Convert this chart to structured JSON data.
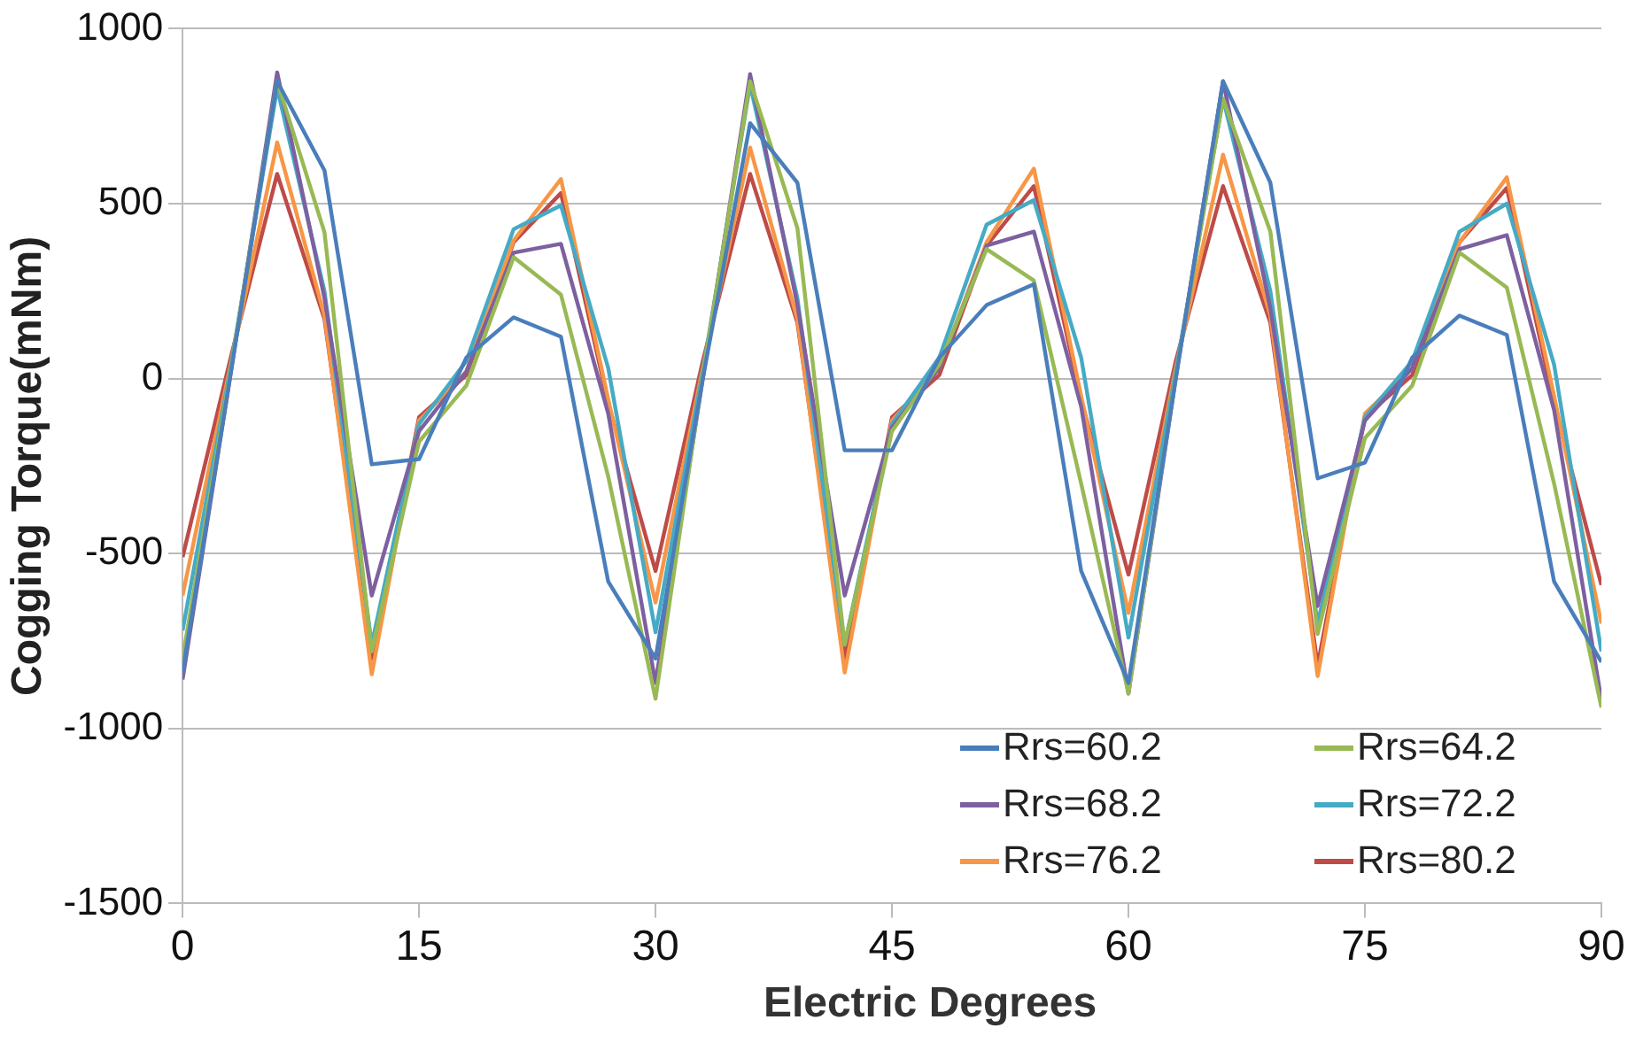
{
  "chart_data": {
    "type": "line",
    "xlabel": "Electric Degrees",
    "ylabel": "Cogging Torque(mNm)",
    "x": [
      0,
      3,
      6,
      9,
      12,
      15,
      18,
      21,
      24,
      27,
      30,
      33,
      36,
      39,
      42,
      45,
      48,
      51,
      54,
      57,
      60,
      63,
      66,
      69,
      72,
      75,
      78,
      81,
      84,
      87,
      90
    ],
    "xlim": [
      0,
      90
    ],
    "xticks": [
      0,
      15,
      30,
      45,
      60,
      75,
      90
    ],
    "ylim": [
      -1500,
      1000
    ],
    "yticks": [
      -1500,
      -1000,
      -500,
      0,
      500,
      1000
    ],
    "grid": "y",
    "legend": "bottom right",
    "marker": "none",
    "line_style": "solid",
    "series": [
      {
        "name": "Rrs=60.2",
        "color": "#4a7ebb",
        "values": [
          -840,
          0,
          850,
          595,
          -245,
          -230,
          60,
          175,
          120,
          -580,
          -800,
          0,
          730,
          560,
          -205,
          -205,
          60,
          210,
          270,
          -550,
          -870,
          0,
          850,
          560,
          -285,
          -240,
          60,
          180,
          125,
          -580,
          -810
        ]
      },
      {
        "name": "Rrs=64.2",
        "color": "#98b954",
        "values": [
          -800,
          10,
          850,
          418,
          -780,
          -180,
          -20,
          347,
          240,
          -280,
          -915,
          10,
          850,
          430,
          -760,
          -150,
          40,
          370,
          280,
          -300,
          -900,
          10,
          800,
          420,
          -730,
          -170,
          -20,
          360,
          260,
          -300,
          -940
        ]
      },
      {
        "name": "Rrs=68.2",
        "color": "#7d60a0",
        "values": [
          -860,
          0,
          875,
          230,
          -620,
          -150,
          20,
          360,
          385,
          -100,
          -870,
          0,
          870,
          210,
          -620,
          -140,
          30,
          380,
          420,
          -80,
          -900,
          0,
          850,
          200,
          -650,
          -120,
          30,
          370,
          410,
          -90,
          -920
        ]
      },
      {
        "name": "Rrs=72.2",
        "color": "#46aac5",
        "values": [
          -720,
          20,
          830,
          250,
          -760,
          -130,
          50,
          427,
          495,
          30,
          -725,
          20,
          840,
          230,
          -760,
          -130,
          60,
          440,
          510,
          60,
          -740,
          20,
          800,
          250,
          -700,
          -110,
          50,
          420,
          500,
          40,
          -780
        ]
      },
      {
        "name": "Rrs=76.2",
        "color": "#f79646",
        "values": [
          -620,
          30,
          675,
          180,
          -845,
          -120,
          20,
          395,
          570,
          -60,
          -640,
          30,
          660,
          170,
          -840,
          -120,
          30,
          390,
          600,
          -50,
          -670,
          30,
          640,
          180,
          -850,
          -100,
          30,
          390,
          575,
          -50,
          -700
        ]
      },
      {
        "name": "Rrs=80.2",
        "color": "#be4b48",
        "values": [
          -510,
          50,
          585,
          170,
          -800,
          -110,
          10,
          390,
          530,
          -70,
          -550,
          50,
          585,
          160,
          -800,
          -110,
          10,
          380,
          550,
          -60,
          -560,
          50,
          550,
          160,
          -820,
          -110,
          10,
          390,
          545,
          -70,
          -590
        ]
      }
    ]
  }
}
